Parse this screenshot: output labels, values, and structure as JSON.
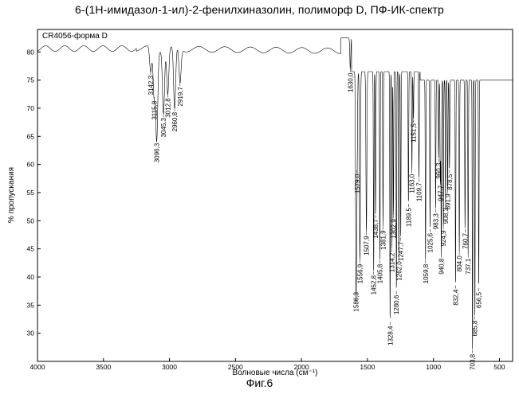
{
  "title": "6-(1H-имидазол-1-ил)-2-фенилхиназолин, полиморф D, ПФ-ИК-спектр",
  "caption": "Фиг.6",
  "chart_data": {
    "type": "line",
    "legend": "CR4056-форма D",
    "xlabel": "Волновые числа (см⁻¹)",
    "ylabel": "% пропускания",
    "xlim": [
      4000,
      400
    ],
    "ylim": [
      25,
      84
    ],
    "x_ticks": [
      4000,
      3500,
      3000,
      2500,
      2000,
      1500,
      1000,
      500
    ],
    "y_ticks": [
      30,
      35,
      40,
      45,
      50,
      55,
      60,
      65,
      70,
      75,
      80
    ],
    "grid": false,
    "series": [
      {
        "color": "#000000",
        "peaks": [
          {
            "label": "3142,3",
            "x": 3142.3,
            "y": 76.5
          },
          {
            "label": "3115,8",
            "x": 3115.8,
            "y": 72.0
          },
          {
            "label": "3096,3",
            "x": 3096.3,
            "y": 64.5
          },
          {
            "label": "3045,3",
            "x": 3045.3,
            "y": 69.0
          },
          {
            "label": "3012,8",
            "x": 3012.8,
            "y": 72.5
          },
          {
            "label": "2960,8",
            "x": 2960.8,
            "y": 70.0
          },
          {
            "label": "2919,7",
            "x": 2919.7,
            "y": 74.5
          },
          {
            "label": "1630,0",
            "x": 1630.0,
            "y": 77.0
          },
          {
            "label": "1579,0",
            "x": 1579.0,
            "y": 59.0
          },
          {
            "label": "1586,3",
            "x": 1586.3,
            "y": 38.0
          },
          {
            "label": "1556,9",
            "x": 1556.9,
            "y": 43.0
          },
          {
            "label": "1507,9",
            "x": 1507.9,
            "y": 48.0
          },
          {
            "label": "1452,8",
            "x": 1452.8,
            "y": 41.0
          },
          {
            "label": "1438,7",
            "x": 1438.7,
            "y": 51.0
          },
          {
            "label": "1405,8",
            "x": 1405.8,
            "y": 43.0
          },
          {
            "label": "1381,9",
            "x": 1381.9,
            "y": 49.0
          },
          {
            "label": "1328,4",
            "x": 1328.4,
            "y": 32.0
          },
          {
            "label": "1314,2",
            "x": 1314.2,
            "y": 45.0
          },
          {
            "label": "1302,9",
            "x": 1302.9,
            "y": 51.0
          },
          {
            "label": "1280,6",
            "x": 1280.6,
            "y": 37.5
          },
          {
            "label": "1262,0",
            "x": 1262.0,
            "y": 43.5
          },
          {
            "label": "1247,7",
            "x": 1247.7,
            "y": 47.0
          },
          {
            "label": "1189,5",
            "x": 1189.5,
            "y": 53.0
          },
          {
            "label": "1163,0",
            "x": 1163.0,
            "y": 59.0
          },
          {
            "label": "1151,5",
            "x": 1151.5,
            "y": 68.0
          },
          {
            "label": "1109,7",
            "x": 1109.7,
            "y": 57.5
          },
          {
            "label": "1059,8",
            "x": 1059.8,
            "y": 43.0
          },
          {
            "label": "1025,6",
            "x": 1025.6,
            "y": 48.5
          },
          {
            "label": "983,3",
            "x": 983.3,
            "y": 52.0
          },
          {
            "label": "960,3",
            "x": 960.3,
            "y": 61.0
          },
          {
            "label": "947,7",
            "x": 947.7,
            "y": 57.0
          },
          {
            "label": "940,8",
            "x": 940.8,
            "y": 44.0
          },
          {
            "label": "924,9",
            "x": 924.9,
            "y": 49.0
          },
          {
            "label": "908,3",
            "x": 908.3,
            "y": 53.0
          },
          {
            "label": "891,9",
            "x": 891.9,
            "y": 55.5
          },
          {
            "label": "878,5",
            "x": 878.5,
            "y": 59.0
          },
          {
            "label": "832,4",
            "x": 832.4,
            "y": 38.5
          },
          {
            "label": "804,0",
            "x": 804.0,
            "y": 44.5
          },
          {
            "label": "760,7",
            "x": 760.7,
            "y": 48.5
          },
          {
            "label": "737,1",
            "x": 737.1,
            "y": 44.0
          },
          {
            "label": "703,8",
            "x": 703.8,
            "y": 27.0
          },
          {
            "label": "685,8",
            "x": 685.8,
            "y": 33.0
          },
          {
            "label": "656,5",
            "x": 656.5,
            "y": 38.0
          }
        ]
      }
    ]
  }
}
